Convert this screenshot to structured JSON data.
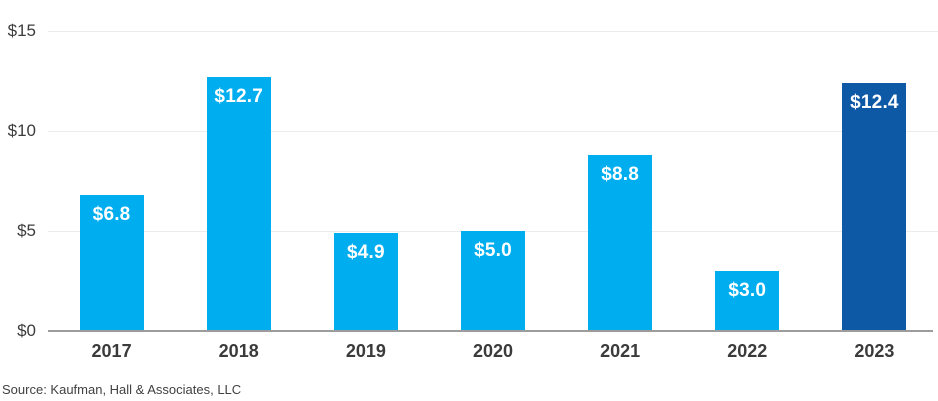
{
  "chart_data": {
    "type": "bar",
    "categories": [
      "2017",
      "2018",
      "2019",
      "2020",
      "2021",
      "2022",
      "2023"
    ],
    "values": [
      6.8,
      12.7,
      4.9,
      5.0,
      8.8,
      3.0,
      12.4
    ],
    "bar_labels": [
      "$6.8",
      "$12.7",
      "$4.9",
      "$5.0",
      "$8.8",
      "$3.0",
      "$12.4"
    ],
    "bar_colors": [
      "#00aeef",
      "#00aeef",
      "#00aeef",
      "#00aeef",
      "#00aeef",
      "#00aeef",
      "#0e59a6"
    ],
    "title": "",
    "xlabel": "",
    "ylabel": "",
    "ylim": [
      0,
      15
    ],
    "yticks": [
      0,
      5,
      10,
      15
    ],
    "ytick_labels": [
      "$0",
      "$5",
      "$10",
      "$15"
    ],
    "grid": true,
    "legend": false
  },
  "colors": {
    "bar_light": "#00aeef",
    "bar_dark": "#0e59a6",
    "gridline": "#ececec",
    "axis_line": "#9c9c9c",
    "tick_text": "#3c3c3c",
    "bar_label_text": "#ffffff"
  },
  "source_note": "Source: Kaufman, Hall & Associates, LLC"
}
